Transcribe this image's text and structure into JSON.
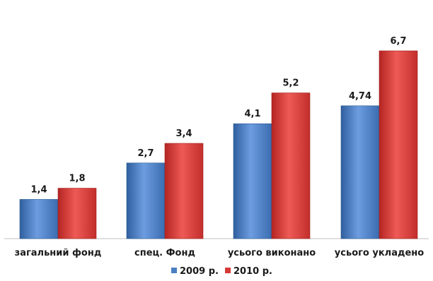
{
  "chart_data": {
    "type": "bar",
    "title": "",
    "categories": [
      "загальний фонд",
      "спец. Фонд",
      "усього виконано",
      "усього укладено"
    ],
    "series": [
      {
        "name": "2009 р.",
        "values": [
          1.4,
          2.7,
          4.1,
          4.74
        ],
        "labels": [
          "1,4",
          "2,7",
          "4,1",
          "4,74"
        ],
        "color": "#4a7fc1"
      },
      {
        "name": "2010 р.",
        "values": [
          1.8,
          3.4,
          5.2,
          6.7
        ],
        "labels": [
          "1,8",
          "3,4",
          "5,2",
          "6,7"
        ],
        "color": "#d63a36"
      }
    ],
    "xlabel": "",
    "ylabel": "",
    "ylim": [
      0,
      7.5
    ],
    "grid": false,
    "legend_position": "bottom"
  }
}
